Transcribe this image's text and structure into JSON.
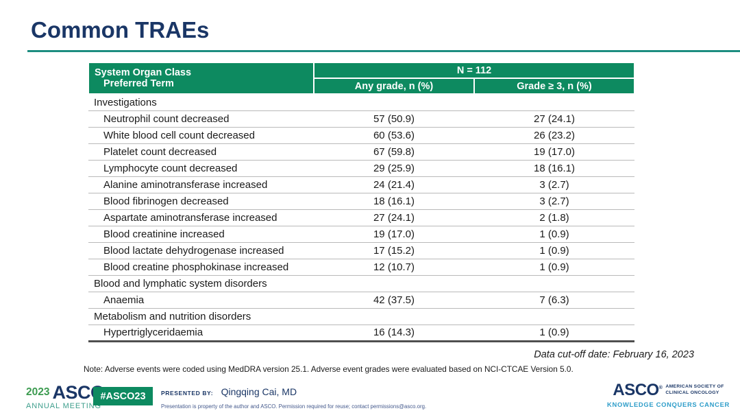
{
  "slide": {
    "title": "Common TRAEs",
    "data_cutoff": "Data cut-off date: February 16, 2023",
    "footnote": "Note: Adverse events were coded using MedDRA version 25.1. Adverse event grades were evaluated based on NCI-CTCAE Version 5.0."
  },
  "table": {
    "header": {
      "organ_class": "System Organ Class",
      "preferred_term": "Preferred Term",
      "n_total": "N = 112",
      "any_grade": "Any grade, n (%)",
      "grade_3": "Grade ≥ 3, n (%)"
    },
    "rows": [
      {
        "type": "category",
        "term": "Investigations",
        "any_grade": "",
        "grade_3": ""
      },
      {
        "type": "term",
        "term": "Neutrophil count decreased",
        "any_grade": "57 (50.9)",
        "grade_3": "27 (24.1)"
      },
      {
        "type": "term",
        "term": "White blood cell count decreased",
        "any_grade": "60 (53.6)",
        "grade_3": "26 (23.2)"
      },
      {
        "type": "term",
        "term": "Platelet count decreased",
        "any_grade": "67 (59.8)",
        "grade_3": "19 (17.0)"
      },
      {
        "type": "term",
        "term": "Lymphocyte count decreased",
        "any_grade": "29 (25.9)",
        "grade_3": "18 (16.1)"
      },
      {
        "type": "term",
        "term": "Alanine aminotransferase increased",
        "any_grade": "24 (21.4)",
        "grade_3": "3 (2.7)"
      },
      {
        "type": "term",
        "term": "Blood fibrinogen decreased",
        "any_grade": "18 (16.1)",
        "grade_3": "3 (2.7)"
      },
      {
        "type": "term",
        "term": "Aspartate aminotransferase increased",
        "any_grade": "27 (24.1)",
        "grade_3": "2 (1.8)"
      },
      {
        "type": "term",
        "term": "Blood creatinine increased",
        "any_grade": "19 (17.0)",
        "grade_3": "1 (0.9)"
      },
      {
        "type": "term",
        "term": "Blood lactate dehydrogenase increased",
        "any_grade": "17 (15.2)",
        "grade_3": "1 (0.9)"
      },
      {
        "type": "term",
        "term": "Blood creatine phosphokinase increased",
        "any_grade": "12 (10.7)",
        "grade_3": "1 (0.9)"
      },
      {
        "type": "category",
        "term": "Blood and lymphatic system disorders",
        "any_grade": "",
        "grade_3": ""
      },
      {
        "type": "term",
        "term": "Anaemia",
        "any_grade": "42 (37.5)",
        "grade_3": "7 (6.3)"
      },
      {
        "type": "category",
        "term": "Metabolism and nutrition disorders",
        "any_grade": "",
        "grade_3": ""
      },
      {
        "type": "term",
        "term": "Hypertriglyceridaemia",
        "any_grade": "16 (14.3)",
        "grade_3": "1 (0.9)"
      }
    ]
  },
  "footer": {
    "meeting_year": "2023",
    "meeting_org": "ASCO",
    "meeting_name": "ANNUAL MEETING",
    "hashtag": "#ASCO23",
    "presented_by_label": "PRESENTED BY:",
    "presenter": "Qingqing Cai, MD",
    "permission": "Presentation is property of the author and ASCO. Permission required for reuse; contact permissions@asco.org.",
    "asco_logo": "ASCO",
    "asco_society_line1": "AMERICAN SOCIETY OF",
    "asco_society_line2": "CLINICAL ONCOLOGY",
    "asco_tagline": "KNOWLEDGE CONQUERS CANCER"
  },
  "colors": {
    "header_green": "#0d8a60",
    "title_navy": "#1a3666",
    "rule_teal": "#1d8d80",
    "tagline_blue": "#2e9dc9",
    "meeting_green": "#3c9b50",
    "meeting_teal": "#3d9e8c",
    "row_divider_gray": "#b9b9b9",
    "table_bottom_gray": "#4f4f4f"
  }
}
